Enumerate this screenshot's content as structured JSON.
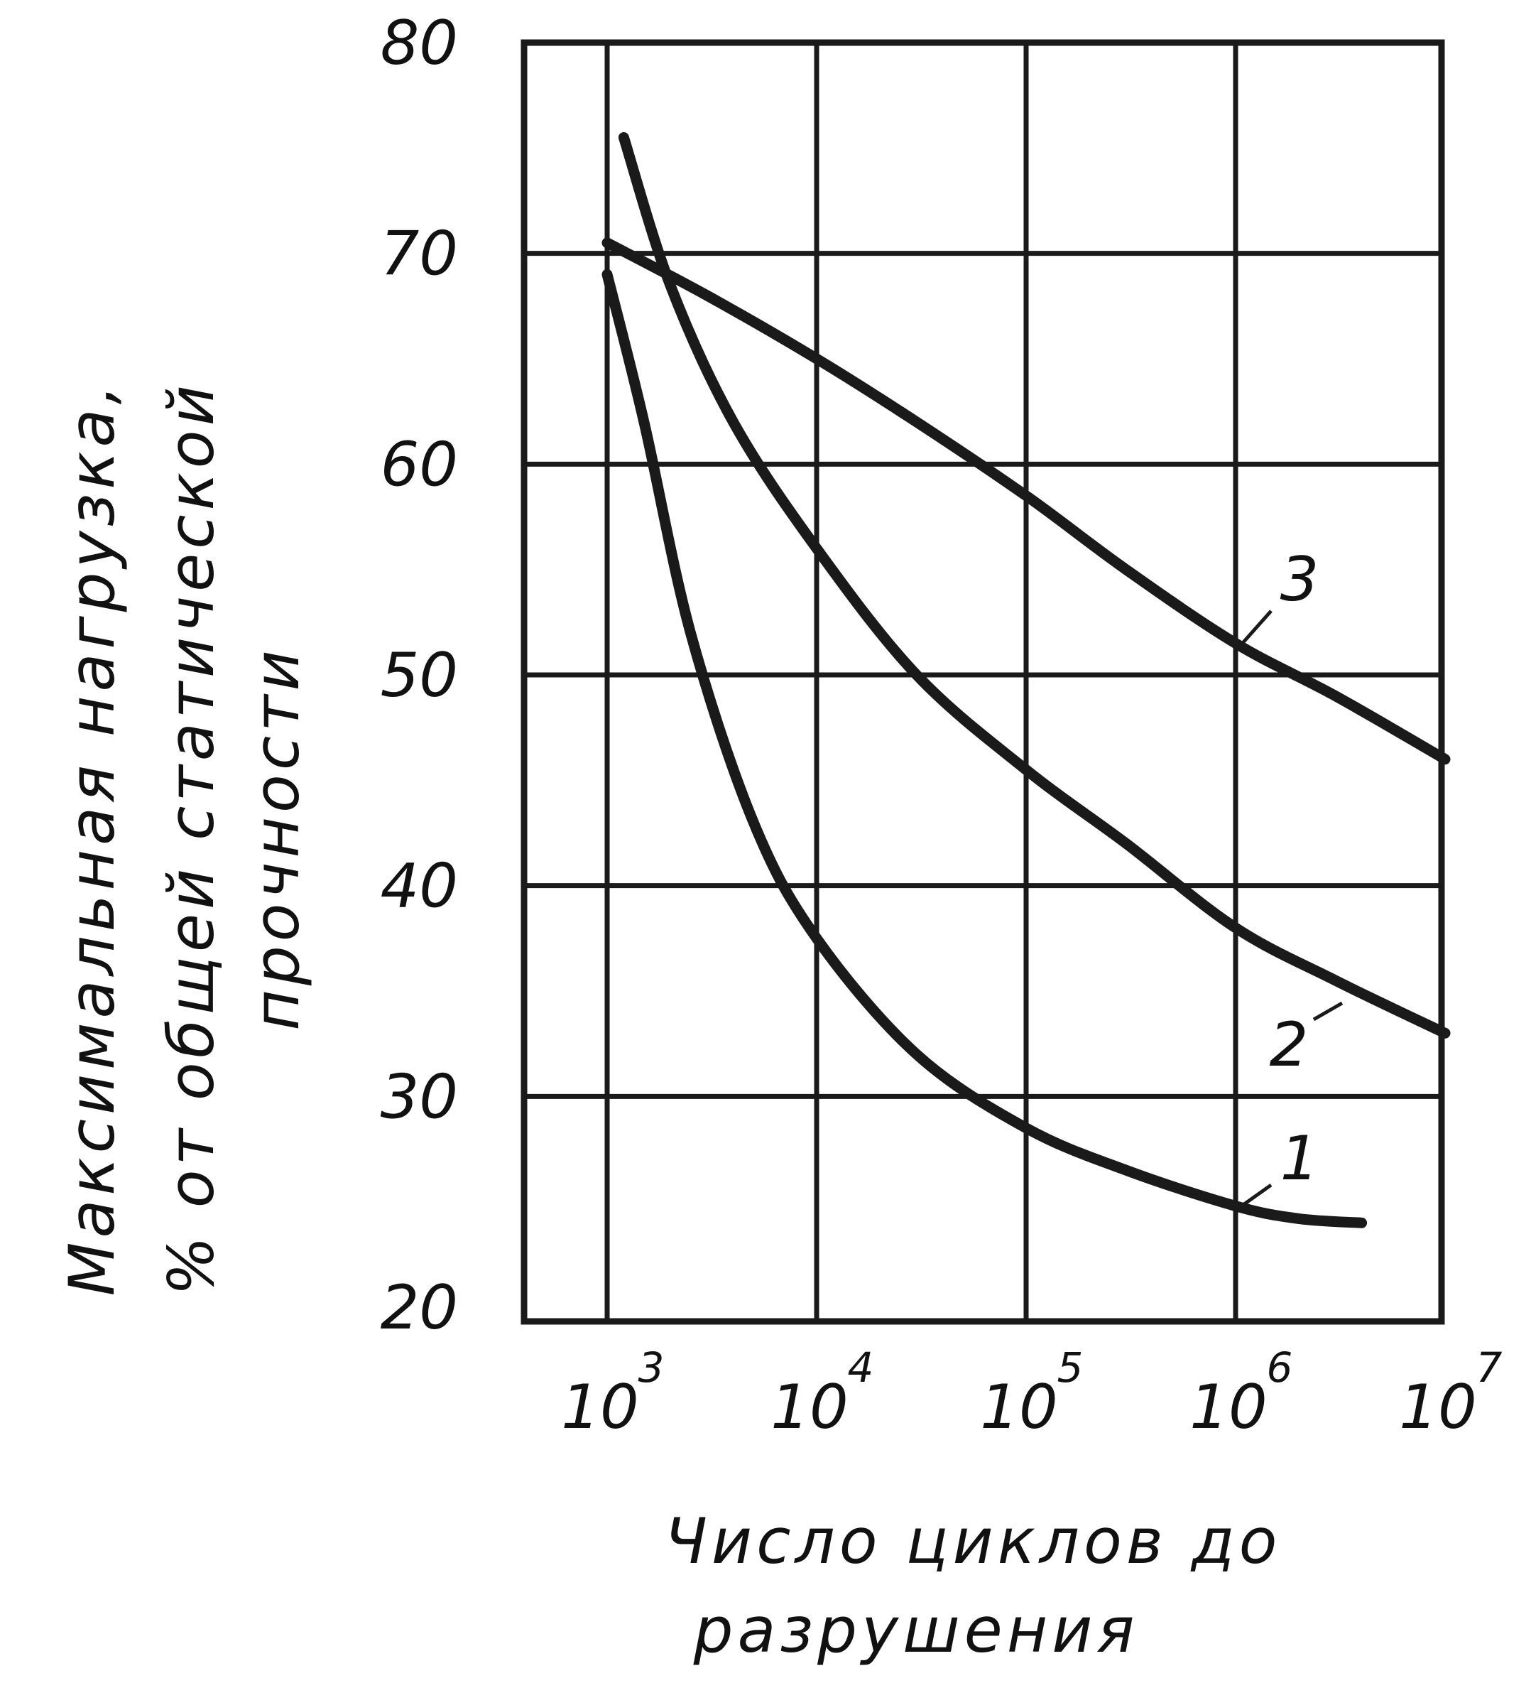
{
  "chart_data": {
    "type": "line",
    "title": "",
    "ylabel": [
      "Максимальная нагрузка,",
      "% от общей статической",
      "прочности"
    ],
    "xlabel": [
      "Число циклов до",
      "разрушения"
    ],
    "x_scale": "log",
    "xlim": [
      500,
      10000000
    ],
    "ylim": [
      20,
      80
    ],
    "grid": true,
    "legend": "none",
    "colors": {
      "line": "#1a1a1a",
      "grid": "#1a1a1a",
      "background": "#ffffff"
    },
    "y_ticks": [
      "80",
      "70",
      "60",
      "50",
      "40",
      "30",
      "20"
    ],
    "x_ticks": [
      {
        "base": "10",
        "exp": "3"
      },
      {
        "base": "10",
        "exp": "4"
      },
      {
        "base": "10",
        "exp": "5"
      },
      {
        "base": "10",
        "exp": "6"
      },
      {
        "base": "10",
        "exp": "7"
      }
    ],
    "series": [
      {
        "name": "1",
        "x": [
          1000,
          1500,
          2500,
          5000,
          10000,
          30000,
          100000,
          300000,
          1000000,
          2000000,
          4000000
        ],
        "y": [
          69,
          62,
          52,
          43,
          37.5,
          32,
          28.5,
          26.5,
          24.8,
          24.2,
          24
        ]
      },
      {
        "name": "2",
        "x": [
          1200,
          2000,
          4000,
          10000,
          30000,
          100000,
          300000,
          1000000,
          3000000,
          10000000
        ],
        "y": [
          75.5,
          68.5,
          62,
          56,
          50,
          45.5,
          42,
          38,
          35.5,
          33
        ]
      },
      {
        "name": "3",
        "x": [
          1000,
          3000,
          10000,
          30000,
          100000,
          300000,
          1000000,
          3000000,
          10000000
        ],
        "y": [
          70.5,
          68,
          65,
          62,
          58.5,
          55,
          51.5,
          49,
          46
        ]
      }
    ]
  }
}
